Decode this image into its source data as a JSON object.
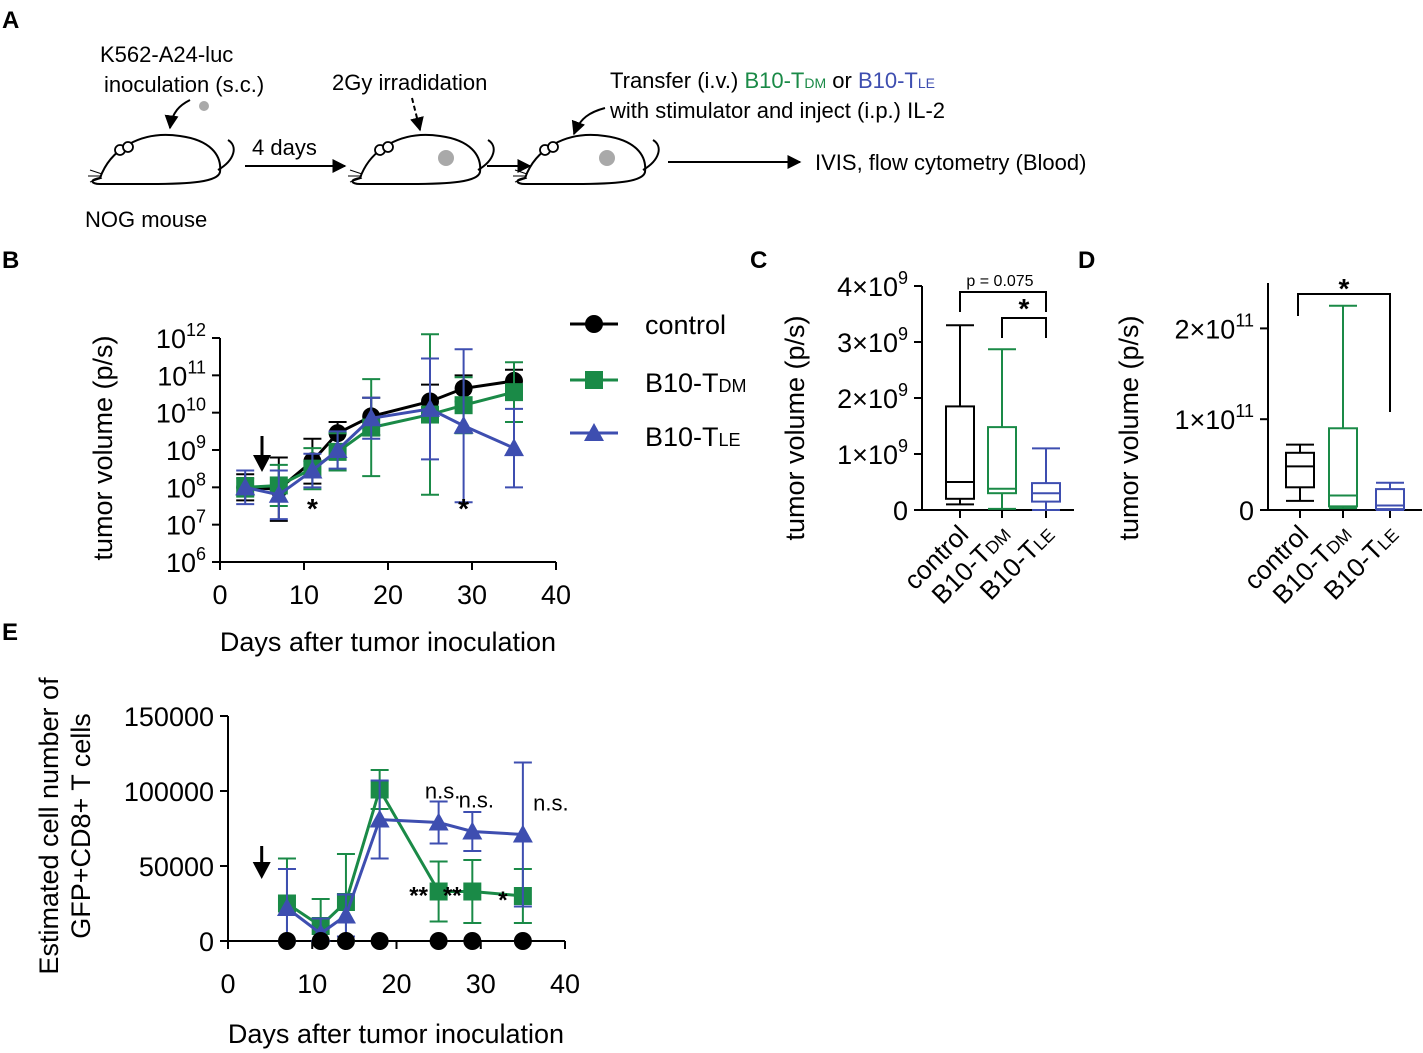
{
  "colors": {
    "control": "#000000",
    "tdm": "#1a8a47",
    "tle": "#3e4eb0",
    "tumor": "#a9a9a9"
  },
  "panelA": {
    "letter": "A",
    "inoc_line1": "K562-A24-luc",
    "inoc_line2": "inoculation (s.c.)",
    "mouse_label": "NOG mouse",
    "four_days": "4 days",
    "irradiation": "2Gy irradidation",
    "transfer_pre": "Transfer (i.v.) ",
    "tdm_prefix": "B10-T",
    "tdm_sub": "DM",
    "or_text": " or ",
    "tle_prefix": "B10-T",
    "tle_sub": "LE",
    "transfer_line2": "with stimulator and inject (i.p.) IL-2",
    "readout": "IVIS, flow cytometry (Blood)"
  },
  "legend": {
    "control": "control",
    "tdm_prefix": "B10-T",
    "tdm_sub": "DM",
    "tle_prefix": "B10-T",
    "tle_sub": "LE"
  },
  "chart_data": [
    {
      "panel": "B",
      "type": "line",
      "ylabel": "tumor volume (p/s)",
      "xlabel": "Days after tumor inoculation",
      "yscale": "log",
      "ylim": [
        6,
        12
      ],
      "xlim": [
        0,
        40
      ],
      "xticks": [
        "0",
        "10",
        "20",
        "30",
        "40"
      ],
      "ytick_base": "10",
      "ytick_exps": [
        "6",
        "7",
        "8",
        "9",
        "10",
        "11",
        "12"
      ],
      "arrow_day": 5,
      "series": [
        {
          "name": "control",
          "x": [
            3,
            7,
            11,
            14,
            18,
            25,
            29,
            35
          ],
          "log10_y": [
            8.0,
            7.95,
            8.7,
            9.45,
            9.9,
            10.3,
            10.65,
            10.85
          ],
          "err_log10": [
            0.35,
            0.85,
            0.6,
            0.3,
            0.5,
            0.45,
            0.35,
            0.3
          ]
        },
        {
          "name": "B10-TDM",
          "x": [
            3,
            7,
            11,
            14,
            18,
            25,
            29,
            35
          ],
          "log10_y": [
            8.0,
            8.05,
            8.5,
            8.95,
            9.6,
            9.95,
            10.2,
            10.55
          ],
          "err_log10": [
            0.25,
            0.55,
            0.55,
            0.5,
            1.3,
            2.15,
            0.75,
            0.8
          ]
        },
        {
          "name": "B10-TLE",
          "x": [
            3,
            7,
            11,
            14,
            18,
            25,
            29,
            35
          ],
          "log10_y": [
            8.0,
            7.8,
            8.45,
            9.0,
            9.85,
            10.1,
            9.65,
            9.05
          ],
          "err_log10": [
            0.45,
            0.65,
            0.45,
            0.5,
            0.55,
            1.35,
            2.05,
            1.05
          ]
        }
      ],
      "annotations": [
        {
          "x": 11,
          "text": "*"
        },
        {
          "x": 29,
          "text": "*"
        }
      ]
    },
    {
      "panel": "C",
      "type": "box",
      "ylabel": "tumor volume (p/s)",
      "ylim": [
        0,
        4
      ],
      "yunit": "×10",
      "yexp": "9",
      "yticks": [
        {
          "label": "0",
          "v": 0
        },
        {
          "label": "1",
          "v": 1
        },
        {
          "label": "2",
          "v": 2
        },
        {
          "label": "3",
          "v": 3
        },
        {
          "label": "4",
          "v": 4
        }
      ],
      "categories": [
        "control",
        "B10-TDM",
        "B10-TLE"
      ],
      "boxes": [
        {
          "name": "control",
          "min": 0.1,
          "q1": 0.2,
          "median": 0.5,
          "q3": 1.85,
          "max": 3.3
        },
        {
          "name": "B10-TDM",
          "min": 0.02,
          "q1": 0.3,
          "median": 0.38,
          "q3": 1.48,
          "max": 2.87
        },
        {
          "name": "B10-TLE",
          "min": 0.0,
          "q1": 0.15,
          "median": 0.3,
          "q3": 0.48,
          "max": 1.1
        }
      ],
      "annotations": [
        {
          "from": "control",
          "to": "B10-TLE",
          "text": "p = 0.075"
        },
        {
          "from": "B10-TDM",
          "to": "B10-TLE",
          "text": "*"
        }
      ]
    },
    {
      "panel": "D",
      "type": "box",
      "ylabel": "tumor volume (p/s)",
      "ylim": [
        0,
        2.5
      ],
      "yunit": "×10",
      "yexp": "11",
      "yticks": [
        {
          "label": "0",
          "v": 0
        },
        {
          "label": "1",
          "v": 1
        },
        {
          "label": "2",
          "v": 2
        }
      ],
      "categories": [
        "control",
        "B10-TDM",
        "B10-TLE"
      ],
      "boxes": [
        {
          "name": "control",
          "min": 0.1,
          "q1": 0.25,
          "median": 0.48,
          "q3": 0.63,
          "max": 0.72
        },
        {
          "name": "B10-TDM",
          "min": 0.02,
          "q1": 0.04,
          "median": 0.16,
          "q3": 0.9,
          "max": 2.25
        },
        {
          "name": "B10-TLE",
          "min": 0.0,
          "q1": 0.01,
          "median": 0.05,
          "q3": 0.23,
          "max": 0.3
        }
      ],
      "annotations": [
        {
          "from": "control",
          "to": "B10-TLE",
          "text": "*"
        }
      ]
    },
    {
      "panel": "E",
      "type": "line",
      "ylabel_line1": "Estimated cell number of",
      "ylabel_line2": "GFP+CD8+ T cells",
      "xlabel": "Days after tumor inoculation",
      "ylim": [
        0,
        150000
      ],
      "xlim": [
        0,
        40
      ],
      "xticks": [
        "0",
        "10",
        "20",
        "30",
        "40"
      ],
      "yticks": [
        {
          "label": "0",
          "v": 0
        },
        {
          "label": "50000",
          "v": 50000
        },
        {
          "label": "100000",
          "v": 100000
        },
        {
          "label": "150000",
          "v": 150000
        }
      ],
      "arrow_day": 4,
      "series": [
        {
          "name": "control",
          "x": [
            7,
            11,
            14,
            18,
            25,
            29,
            35
          ],
          "y": [
            0,
            0,
            0,
            0,
            0,
            0,
            0
          ],
          "err": [
            0,
            0,
            0,
            0,
            0,
            0,
            0
          ]
        },
        {
          "name": "B10-TDM",
          "x": [
            7,
            11,
            14,
            18,
            25,
            29,
            35
          ],
          "y": [
            25000,
            10000,
            26000,
            101000,
            33000,
            33000,
            30000
          ],
          "err": [
            30000,
            18000,
            32000,
            13000,
            20000,
            21000,
            18000
          ]
        },
        {
          "name": "B10-TLE",
          "x": [
            7,
            11,
            14,
            18,
            25,
            29,
            35
          ],
          "y": [
            22000,
            5000,
            17000,
            81000,
            79000,
            73000,
            71000
          ],
          "err": [
            26000,
            10000,
            14000,
            26000,
            14000,
            13000,
            48000
          ]
        }
      ],
      "annotations": [
        {
          "x": 25,
          "y": 79000,
          "text": "n.s.",
          "series": "B10-TLE"
        },
        {
          "x": 29,
          "y": 73000,
          "text": "n.s.",
          "series": "B10-TLE"
        },
        {
          "x": 35,
          "y": 71000,
          "text": "n.s.",
          "series": "B10-TLE"
        },
        {
          "x": 25,
          "y": 33000,
          "text": "**",
          "series": "B10-TDM"
        },
        {
          "x": 29,
          "y": 33000,
          "text": "**",
          "series": "B10-TDM"
        },
        {
          "x": 35,
          "y": 30000,
          "text": "*",
          "series": "B10-TDM"
        }
      ]
    }
  ],
  "panel_letters": {
    "B": "B",
    "C": "C",
    "D": "D",
    "E": "E"
  }
}
